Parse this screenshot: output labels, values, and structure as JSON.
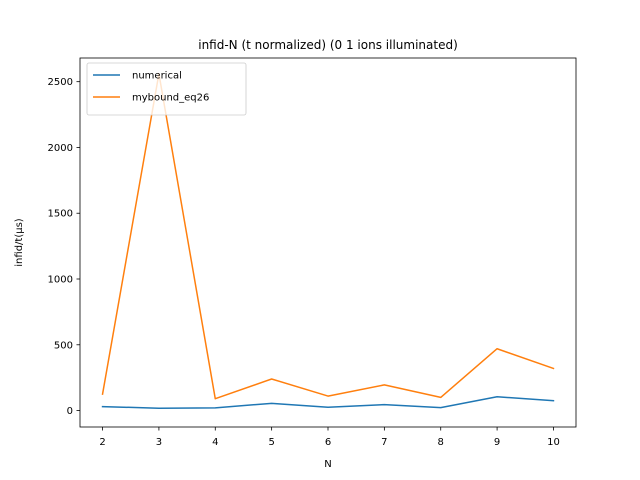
{
  "chart_data": {
    "type": "line",
    "title": "infid-N (t normalized) (0 1 ions illuminated)",
    "xlabel": "N",
    "ylabel": "infid/t(μs)",
    "x": [
      2,
      3,
      4,
      5,
      6,
      7,
      8,
      9,
      10
    ],
    "xticks": [
      2,
      3,
      4,
      5,
      6,
      7,
      8,
      9,
      10
    ],
    "xtick_labels": [
      "2",
      "3",
      "4",
      "5",
      "6",
      "7",
      "8",
      "9",
      "10"
    ],
    "xlim": [
      1.6,
      10.4
    ],
    "yticks": [
      0,
      500,
      1000,
      1500,
      2000,
      2500
    ],
    "ytick_labels": [
      "0",
      "500",
      "1000",
      "1500",
      "2000",
      "2500"
    ],
    "ylim": [
      -125,
      2680
    ],
    "grid": false,
    "legend_position": "upper-left",
    "series": [
      {
        "name": "numerical",
        "color": "#1f77b4",
        "values": [
          30,
          18,
          20,
          55,
          25,
          45,
          22,
          105,
          75
        ]
      },
      {
        "name": "mybound_eq26",
        "color": "#ff7f0e",
        "values": [
          125,
          2560,
          90,
          240,
          110,
          195,
          100,
          470,
          320
        ]
      }
    ]
  }
}
